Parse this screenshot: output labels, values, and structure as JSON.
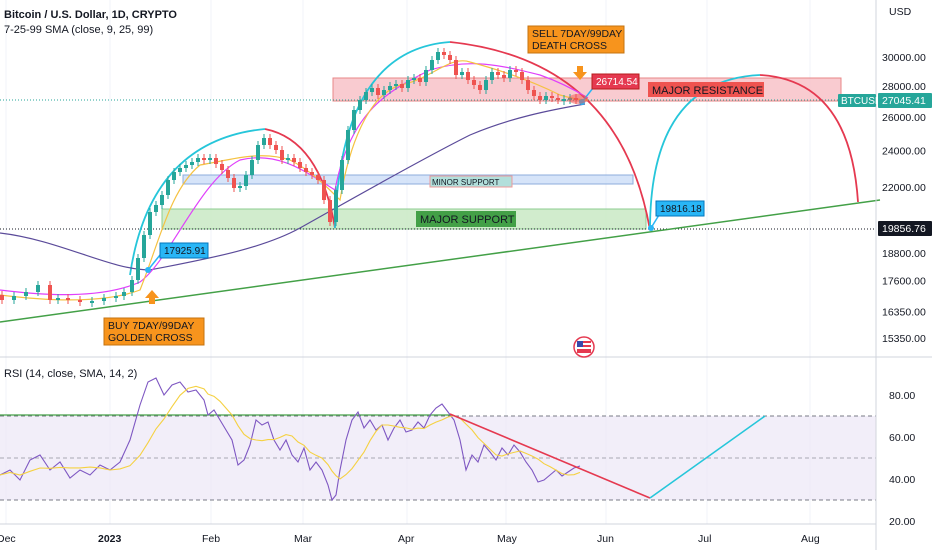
{
  "chart_data": {
    "type": "candlestick",
    "title": "Bitcoin / U.S. Dollar, 1D, CRYPTO",
    "indicator": "7-25-99 SMA (close, 9, 25, 99)",
    "currency_label": "USD",
    "symbol": "BTCUSD",
    "current_price": "27045.41",
    "horizontal_level": "19856.76",
    "price_axis": {
      "scale": "log",
      "ticks": [
        "30000.00",
        "28000.00",
        "26000.00",
        "24000.00",
        "22000.00",
        "19856.76",
        "18800.00",
        "17600.00",
        "16350.00",
        "15350.00"
      ]
    },
    "time_axis": [
      "Dec",
      "2023",
      "Feb",
      "Mar",
      "Apr",
      "May",
      "Jun",
      "Jul",
      "Aug"
    ],
    "annotations": {
      "buy": "BUY 7DAY/99DAY\nGOLDEN CROSS",
      "sell": "SELL 7DAY/99DAY\nDEATH CROSS",
      "major_resistance": "MAJOR RESISTANCE",
      "minor_support": "MINOR SUPPORT",
      "major_support": "MAJOR SUPPORT",
      "price_callouts": [
        "17925.91",
        "26714.54",
        "19816.18"
      ]
    },
    "rsi": {
      "label": "RSI (14, close, SMA, 14, 2)",
      "ticks": [
        "80.00",
        "60.00",
        "40.00",
        "20.00"
      ],
      "levels": [
        70,
        50,
        30
      ]
    }
  },
  "colors": {
    "up": "#26a69a",
    "down": "#ef5350",
    "sma7": "#f5c242",
    "sma25": "#e040fb",
    "sma99": "#5b4b9a",
    "resistance": "#f8a8b0",
    "support": "#b9e3b3",
    "minor": "#c6d9f5",
    "trend": "#43a047",
    "arc_up": "#26c6da",
    "arc_down": "#e53950",
    "orange": "#f7941d",
    "callout": "#29b6f6",
    "callout_red": "#e53950"
  }
}
